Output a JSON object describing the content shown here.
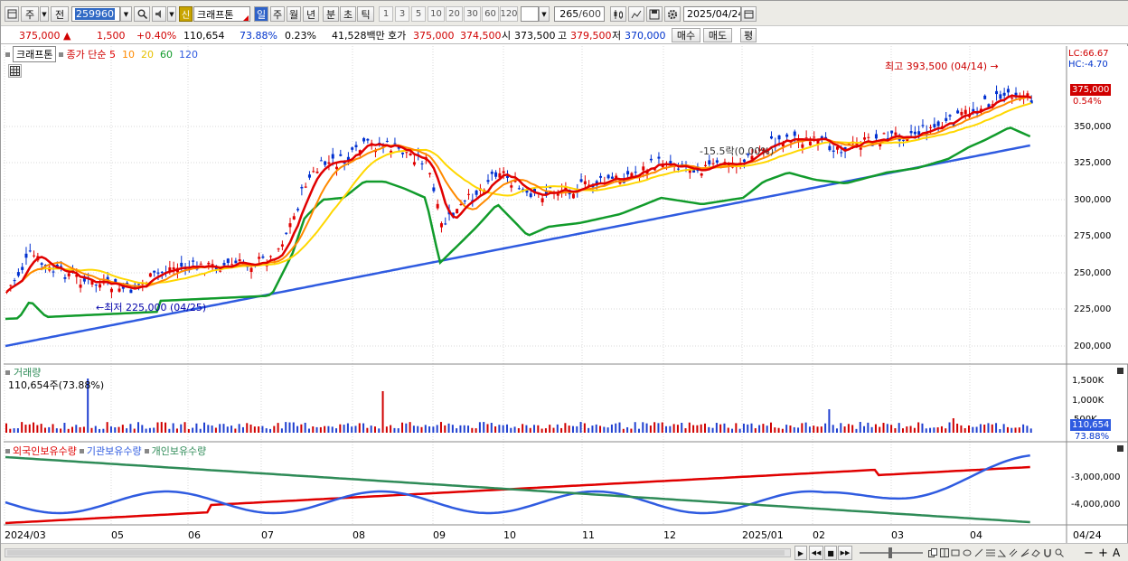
{
  "toolbar": {
    "period_select": "주",
    "all_select": "전",
    "stock_code": "259960",
    "stock_name": "크래프톤",
    "credit_badge": "신",
    "period_buttons": [
      "일",
      "주",
      "월",
      "년",
      "분",
      "초",
      "틱"
    ],
    "interval_buttons": [
      "1",
      "3",
      "5",
      "10",
      "20",
      "30",
      "60",
      "120"
    ],
    "count_value": "265",
    "count_max": "/600",
    "date": "2025/04/24"
  },
  "quote": {
    "price": "375,000",
    "arrow": "▲",
    "change": "1,500",
    "change_pct": "+0.40%",
    "volume": "110,654",
    "volume_ratio": "73.88%",
    "turnover": "0.23%",
    "amount": "41,528백만",
    "ask_label": "호가",
    "ask": "375,000",
    "bid": "374,500",
    "open_label": "시",
    "open": "373,500",
    "high_label": "고",
    "high": "379,500",
    "low_label": "저",
    "low": "370,000",
    "buy_label": "매수",
    "sell_label": "매도",
    "avg_label": "평"
  },
  "price_panel": {
    "name_tag": "크래프톤",
    "legend_title": "종가 단순",
    "ma_labels": [
      "5",
      "10",
      "20",
      "60",
      "120"
    ],
    "ma_colors": [
      "#e00000",
      "#ff8a00",
      "#ffd700",
      "#119b2b",
      "#2f5be0"
    ],
    "lc_label": "LC:66.67",
    "hc_label": "HC:-4.70",
    "max_label": "최고 393,500 (04/14)",
    "min_label": "최저 225,000 (04/25)",
    "cross_label": "-15.5락(0.00%)",
    "current_price_label": "375,000",
    "current_pct_label": "0.54%",
    "y_ticks": [
      "350,000",
      "325,000",
      "300,000",
      "275,000",
      "250,000",
      "225,000",
      "200,000"
    ]
  },
  "volume_panel": {
    "title": "거래량",
    "value_label": "110,654주(73.88%)",
    "y_ticks": [
      "1,500K",
      "1,000K",
      "500K"
    ],
    "current_label": "110,654",
    "current_pct_label": "73.88%"
  },
  "holding_panel": {
    "legend": [
      "외국인보유수량",
      "기관보유수량",
      "개인보유수량"
    ],
    "colors": [
      "#e00000",
      "#2f5be0",
      "#2e8b57"
    ],
    "y_ticks": [
      "-3,000,000",
      "-4,000,000"
    ]
  },
  "x_axis": {
    "labels": [
      "2024/03",
      "05",
      "06",
      "07",
      "08",
      "09",
      "10",
      "11",
      "12",
      "2025/01",
      "02",
      "03",
      "04"
    ],
    "end_label": "04/24"
  },
  "bottom_bar": {
    "nav": [
      "▶",
      "◀◀",
      "■",
      "▶▶"
    ],
    "tools": [
      "−",
      "+",
      "A"
    ]
  }
}
